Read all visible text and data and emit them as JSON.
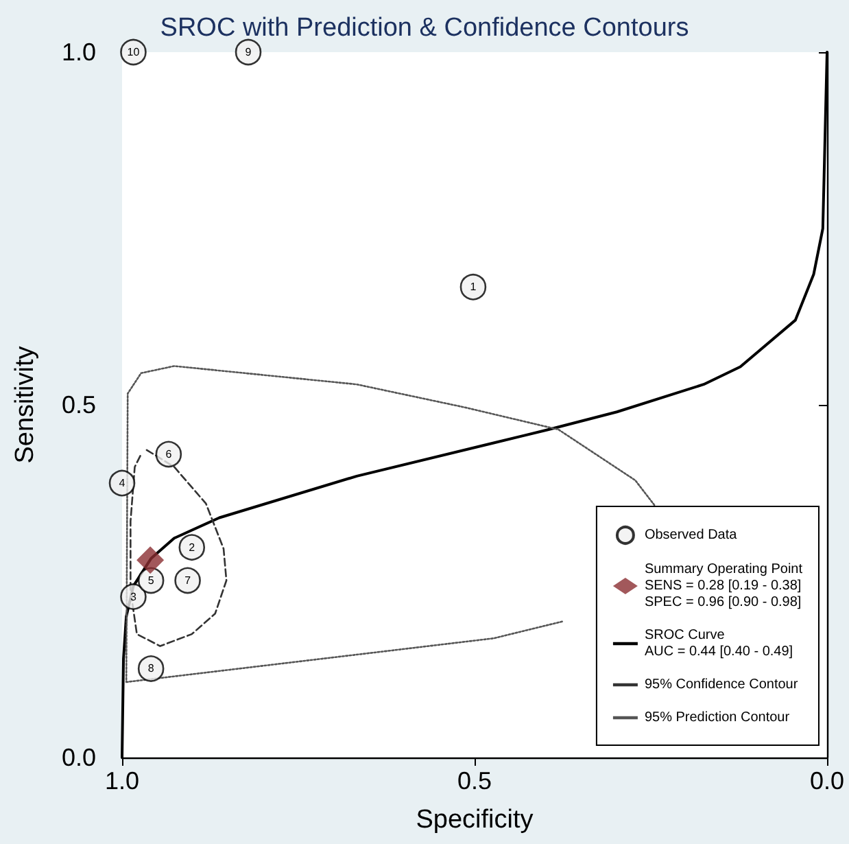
{
  "chart_data": {
    "type": "scatter",
    "title": "SROC with Prediction & Confidence Contours",
    "xlabel": "Specificity",
    "ylabel": "Sensitivity",
    "xlim": [
      1,
      0
    ],
    "xticks": [
      {
        "value": 1,
        "label": "1.0"
      },
      {
        "value": 0.5,
        "label": "0.5"
      },
      {
        "value": 0,
        "label": "0.0"
      }
    ],
    "ylim": [
      0,
      1
    ],
    "yticks": [
      {
        "value": 0,
        "label": "0.0"
      },
      {
        "value": 0.5,
        "label": "0.5"
      },
      {
        "value": 1,
        "label": "1.0"
      }
    ],
    "grid": false,
    "legend": "bottom right",
    "series": [
      {
        "name": "Observed Data",
        "type": "scatter",
        "marker": "circle",
        "color": "#f0f0f0",
        "x": [
          0.502,
          0.901,
          0.984,
          1.0,
          0.959,
          0.934,
          0.907,
          0.959,
          0.821,
          0.984
        ],
        "values": [
          0.667,
          0.298,
          0.228,
          0.389,
          0.251,
          0.43,
          0.251,
          0.126,
          1.0,
          1.0
        ]
      },
      {
        "name": "Summary Operating Point\nSENS = 0.28 [0.19 - 0.38]\nSPEC = 0.96 [0.90 - 0.98]",
        "type": "scatter",
        "marker": "diamond",
        "color": "#8b2e32",
        "x": [
          0.96
        ],
        "values": [
          0.28
        ]
      },
      {
        "name": "SROC Curve\nAUC = 0.44 [0.40 - 0.49]",
        "type": "line",
        "marker": "none",
        "line_style": "solid",
        "color": "#000000",
        "x": [
          1.0,
          0.998,
          0.994,
          0.984,
          0.959,
          0.926,
          0.862,
          0.667,
          0.473,
          0.395,
          0.298,
          0.175,
          0.123,
          0.045,
          0.019,
          0.006,
          0.0
        ],
        "values": [
          0.0,
          0.14,
          0.2,
          0.243,
          0.282,
          0.311,
          0.34,
          0.399,
          0.446,
          0.465,
          0.49,
          0.529,
          0.554,
          0.62,
          0.685,
          0.75,
          1.0
        ]
      },
      {
        "name": "95% Confidence Contour",
        "type": "line",
        "marker": "none",
        "line_style": "dashed",
        "color": "#333333",
        "x": [
          0.965,
          0.926,
          0.881,
          0.856,
          0.852,
          0.868,
          0.901,
          0.946,
          0.979,
          0.988,
          0.988,
          0.982,
          0.972
        ],
        "values": [
          0.436,
          0.412,
          0.36,
          0.296,
          0.251,
          0.204,
          0.175,
          0.158,
          0.175,
          0.237,
          0.335,
          0.412,
          0.432
        ]
      },
      {
        "name": "95% Prediction Contour",
        "type": "line",
        "marker": "none",
        "line_style": "dotted",
        "color": "#555555",
        "x": [
          0.994,
          0.473,
          0.375,
          0.31,
          0.245,
          0.272,
          0.381,
          0.512,
          0.667,
          0.926,
          0.973,
          0.992,
          0.994
        ],
        "values": [
          0.107,
          0.169,
          0.193,
          null,
          0.358,
          0.393,
          0.465,
          0.496,
          0.529,
          0.555,
          0.545,
          0.516,
          0.107
        ]
      }
    ],
    "annotations": [
      {
        "text": "1",
        "x": 0.502,
        "y": 0.667
      },
      {
        "text": "2",
        "x": 0.901,
        "y": 0.298
      },
      {
        "text": "3",
        "x": 0.984,
        "y": 0.228
      },
      {
        "text": "4",
        "x": 1.0,
        "y": 0.389
      },
      {
        "text": "5",
        "x": 0.959,
        "y": 0.251
      },
      {
        "text": "6",
        "x": 0.934,
        "y": 0.43
      },
      {
        "text": "7",
        "x": 0.907,
        "y": 0.251
      },
      {
        "text": "8",
        "x": 0.959,
        "y": 0.126
      },
      {
        "text": "9",
        "x": 0.821,
        "y": 1.0
      },
      {
        "text": "10",
        "x": 0.984,
        "y": 1.0
      }
    ]
  }
}
